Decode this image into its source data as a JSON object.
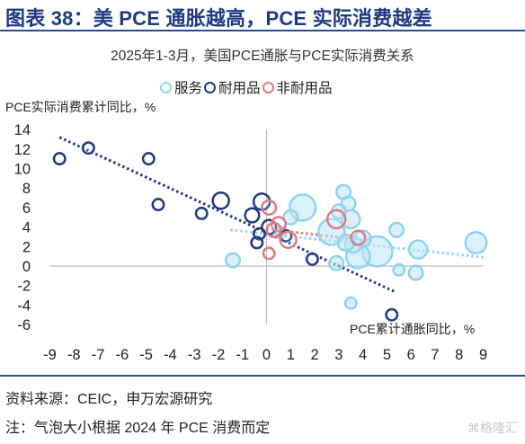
{
  "header": {
    "title": "图表 38：美 PCE 通胀越高，PCE 实际消费越差"
  },
  "footer": {
    "source": "资料来源：CEIC，申万宏源研究",
    "note": "注：气泡大小根据 2024 年 PCE 消费而定",
    "watermark": "⌘格隆汇"
  },
  "colors": {
    "header": "#1f3b82",
    "services": "#8fd4f0",
    "durable": "#1f3b82",
    "nondurable": "#e07a84"
  },
  "chart_data": {
    "type": "scatter",
    "title": "2025年1-3月，美国PCE通胀与PCE实际消费关系",
    "xlabel": "PCE累计通胀同比，%",
    "ylabel": "PCE实际消费累计同比，%",
    "xlim": [
      -9,
      9
    ],
    "ylim": [
      -6,
      14
    ],
    "x_ticks": [
      -9,
      -8,
      -7,
      -6,
      -5,
      -4,
      -3,
      -2,
      -1,
      0,
      1,
      2,
      3,
      4,
      5,
      6,
      7,
      8,
      9
    ],
    "y_ticks": [
      14,
      12,
      10,
      8,
      6,
      4,
      2,
      0,
      -2,
      -4,
      -6
    ],
    "grid": false,
    "legend_position": "top",
    "series": [
      {
        "name": "服务",
        "color": "#8fd4f0",
        "trendline": {
          "x": [
            -1.5,
            9
          ],
          "y": [
            3.7,
            0.9
          ]
        },
        "points": [
          {
            "x": 1.5,
            "y": 6.0,
            "size": 5
          },
          {
            "x": 2.7,
            "y": 3.5,
            "size": 5
          },
          {
            "x": 4.6,
            "y": 1.5,
            "size": 7
          },
          {
            "x": 3.8,
            "y": 1.0,
            "size": 4
          },
          {
            "x": 8.7,
            "y": 2.4,
            "size": 3
          },
          {
            "x": 6.3,
            "y": 1.7,
            "size": 2
          },
          {
            "x": 3.5,
            "y": 4.8,
            "size": 2
          },
          {
            "x": 4.0,
            "y": 2.8,
            "size": 1.5
          },
          {
            "x": 3.6,
            "y": 2.2,
            "size": 1.5
          },
          {
            "x": 3.3,
            "y": 2.4,
            "size": 1.5
          },
          {
            "x": 5.4,
            "y": 3.7,
            "size": 1
          },
          {
            "x": 3.2,
            "y": 7.6,
            "size": 1
          },
          {
            "x": 3.4,
            "y": 6.4,
            "size": 1
          },
          {
            "x": 3.0,
            "y": 5.6,
            "size": 1
          },
          {
            "x": 1.0,
            "y": 5.0,
            "size": 1
          },
          {
            "x": 2.9,
            "y": 0.3,
            "size": 1
          },
          {
            "x": 6.2,
            "y": -0.7,
            "size": 1
          },
          {
            "x": 5.5,
            "y": -0.4,
            "size": 0.5
          },
          {
            "x": -1.4,
            "y": 0.6,
            "size": 1
          },
          {
            "x": 3.5,
            "y": -3.8,
            "size": 0.5
          },
          {
            "x": 0.6,
            "y": 3.4,
            "size": 0.5
          }
        ]
      },
      {
        "name": "耐用品",
        "color": "#1f3b82",
        "trendline": {
          "x": [
            -8.6,
            5.3
          ],
          "y": [
            13.2,
            -2.6
          ]
        },
        "points": [
          {
            "x": -8.6,
            "y": 11.0,
            "size": 0.5
          },
          {
            "x": -7.4,
            "y": 12.1,
            "size": 0.5
          },
          {
            "x": -4.9,
            "y": 11.0,
            "size": 0.5
          },
          {
            "x": -4.5,
            "y": 6.3,
            "size": 0.5
          },
          {
            "x": -2.7,
            "y": 5.4,
            "size": 0.5
          },
          {
            "x": -1.9,
            "y": 6.7,
            "size": 1.5
          },
          {
            "x": -0.2,
            "y": 6.6,
            "size": 1.5
          },
          {
            "x": -0.6,
            "y": 5.2,
            "size": 1
          },
          {
            "x": 0.1,
            "y": 4.0,
            "size": 1
          },
          {
            "x": -0.3,
            "y": 3.3,
            "size": 0.5
          },
          {
            "x": -0.4,
            "y": 2.4,
            "size": 0.5
          },
          {
            "x": 0.8,
            "y": 3.1,
            "size": 0.5
          },
          {
            "x": 1.9,
            "y": 0.7,
            "size": 0.5
          },
          {
            "x": 5.2,
            "y": -5.0,
            "size": 0.5
          }
        ]
      },
      {
        "name": "非耐用品",
        "color": "#e07a84",
        "trendline": {
          "x": [
            0,
            4.2
          ],
          "y": [
            3.8,
            2.6
          ]
        },
        "points": [
          {
            "x": 0.1,
            "y": 6.0,
            "size": 1
          },
          {
            "x": 0.5,
            "y": 4.3,
            "size": 1
          },
          {
            "x": 0.3,
            "y": 3.7,
            "size": 1
          },
          {
            "x": 0.9,
            "y": 2.7,
            "size": 1.5
          },
          {
            "x": 2.9,
            "y": 4.8,
            "size": 2
          },
          {
            "x": 3.8,
            "y": 2.9,
            "size": 1
          },
          {
            "x": 0.1,
            "y": 1.3,
            "size": 0.5
          }
        ]
      }
    ]
  }
}
